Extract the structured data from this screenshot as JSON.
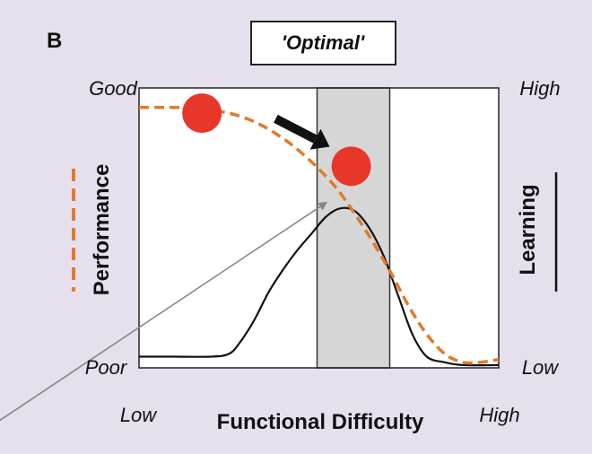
{
  "panel_label": "B",
  "chart_data": {
    "type": "line",
    "title": "'Optimal'",
    "xlabel": "Functional Difficulty",
    "x_tick_labels": {
      "low": "Low",
      "high": "High"
    },
    "left_axis": {
      "label": "Performance",
      "top": "Good",
      "bottom": "Poor",
      "style": "dashed",
      "color": "#e07b2a"
    },
    "right_axis": {
      "label": "Learning",
      "top": "High",
      "bottom": "Low",
      "style": "solid",
      "color": "#111111"
    },
    "xlim": [
      0,
      100
    ],
    "ylim": [
      0,
      100
    ],
    "optimal_zone": [
      49.5,
      69.7
    ],
    "series": [
      {
        "name": "Performance",
        "style": "dashed",
        "color": "#e07b2a",
        "x": [
          0,
          5,
          10,
          15,
          20,
          25,
          30,
          35,
          40,
          45,
          50,
          55,
          60,
          65,
          70,
          75,
          80,
          85,
          90,
          95,
          100
        ],
        "y": [
          93,
          93,
          93,
          93,
          92,
          91,
          89,
          86,
          82,
          77,
          71,
          64,
          55,
          45,
          34,
          22,
          12,
          5,
          2,
          2,
          3
        ]
      },
      {
        "name": "Learning",
        "style": "solid",
        "color": "#111111",
        "x": [
          0,
          10,
          20,
          25,
          28,
          32,
          36,
          40,
          44,
          48,
          52,
          56,
          60,
          64,
          68,
          72,
          76,
          80,
          85,
          90,
          100
        ],
        "y": [
          4,
          4,
          4,
          5,
          9,
          17,
          27,
          35,
          42,
          48,
          54,
          57,
          56,
          50,
          40,
          26,
          12,
          4,
          2,
          1,
          1
        ]
      }
    ],
    "markers": [
      {
        "name": "start-point",
        "x": 17.5,
        "y": 91,
        "color": "#e8362a"
      },
      {
        "name": "optimal-point",
        "x": 59,
        "y": 72,
        "color": "#e8362a"
      }
    ],
    "arrows": [
      {
        "name": "progress-arrow",
        "from": [
          38,
          89
        ],
        "to": [
          53,
          79
        ],
        "color": "#111111"
      },
      {
        "name": "pointer-arrow",
        "from": [
          -39,
          -19
        ],
        "to": [
          52,
          59
        ],
        "color": "#888888"
      }
    ]
  }
}
